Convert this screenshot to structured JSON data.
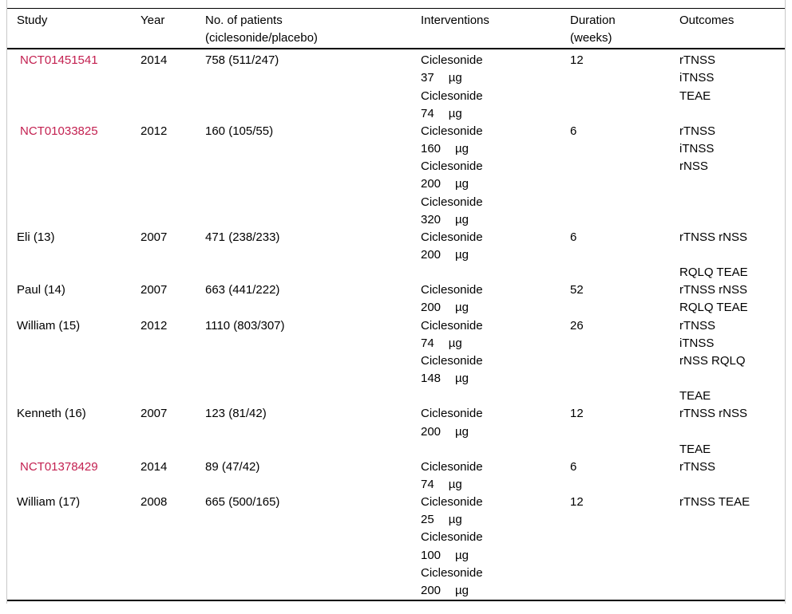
{
  "colors": {
    "link": "#c32050",
    "rule": "#000000",
    "frame_border": "#c9c9c9"
  },
  "table": {
    "columns": [
      {
        "line1": "Study"
      },
      {
        "line1": "Year"
      },
      {
        "line1": "No. of patients",
        "line2": "(ciclesonide/placebo)"
      },
      {
        "line1": "Interventions"
      },
      {
        "line1": "Duration",
        "line2": "(weeks)"
      },
      {
        "line1": "Outcomes"
      }
    ],
    "rows": [
      {
        "study": "NCT01451541",
        "link": true,
        "year": "2014",
        "patients": "758 (511/247)",
        "interventions": [
          {
            "drug": "Ciclesonide",
            "dose": "37",
            "unit": "µg"
          },
          {
            "drug": "Ciclesonide",
            "dose": "74",
            "unit": "µg"
          }
        ],
        "duration": "12",
        "outcomes": [
          "rTNSS",
          "iTNSS",
          "TEAE"
        ]
      },
      {
        "study": "NCT01033825",
        "link": true,
        "year": "2012",
        "patients": "160 (105/55)",
        "interventions": [
          {
            "drug": "Ciclesonide",
            "dose": "160",
            "unit": "µg"
          },
          {
            "drug": "Ciclesonide",
            "dose": "200",
            "unit": "µg"
          },
          {
            "drug": "Ciclesonide",
            "dose": "320",
            "unit": "µg"
          }
        ],
        "duration": "6",
        "outcomes": [
          "rTNSS",
          "iTNSS",
          "rNSS"
        ]
      },
      {
        "study": "Eli (13)",
        "link": false,
        "year": "2007",
        "patients": "471 (238/233)",
        "interventions": [
          {
            "drug": "Ciclesonide",
            "dose": "200",
            "unit": "µg"
          }
        ],
        "duration": "6",
        "outcomes": [
          "rTNSS rNSS",
          "",
          "RQLQ TEAE"
        ]
      },
      {
        "study": "Paul (14)",
        "link": false,
        "year": "2007",
        "patients": "663 (441/222)",
        "interventions": [
          {
            "drug": "Ciclesonide",
            "dose": "200",
            "unit": "µg"
          }
        ],
        "duration": "52",
        "outcomes": [
          "rTNSS rNSS",
          "RQLQ TEAE"
        ]
      },
      {
        "study": "William (15)",
        "link": false,
        "year": "2012",
        "patients": "1110 (803/307)",
        "interventions": [
          {
            "drug": "Ciclesonide",
            "dose": "74",
            "unit": "µg"
          },
          {
            "drug": "Ciclesonide",
            "dose": "148",
            "unit": "µg"
          }
        ],
        "duration": "26",
        "outcomes": [
          "rTNSS",
          "iTNSS",
          "rNSS RQLQ",
          "",
          "TEAE"
        ]
      },
      {
        "study": "Kenneth (16)",
        "link": false,
        "year": "2007",
        "patients": "123 (81/42)",
        "interventions": [
          {
            "drug": "Ciclesonide",
            "dose": "200",
            "unit": "µg"
          }
        ],
        "duration": "12",
        "outcomes": [
          "rTNSS rNSS",
          "",
          "TEAE"
        ]
      },
      {
        "study": "NCT01378429",
        "link": true,
        "year": "2014",
        "patients": "89 (47/42)",
        "interventions": [
          {
            "drug": "Ciclesonide",
            "dose": "74",
            "unit": "µg"
          }
        ],
        "duration": "6",
        "outcomes": [
          "rTNSS"
        ]
      },
      {
        "study": "William (17)",
        "link": false,
        "year": "2008",
        "patients": "665 (500/165)",
        "interventions": [
          {
            "drug": "Ciclesonide",
            "dose": "25",
            "unit": "µg"
          },
          {
            "drug": "Ciclesonide",
            "dose": "100",
            "unit": "µg"
          },
          {
            "drug": "Ciclesonide",
            "dose": "200",
            "unit": "µg"
          }
        ],
        "duration": "12",
        "outcomes": [
          "rTNSS TEAE"
        ]
      }
    ]
  }
}
